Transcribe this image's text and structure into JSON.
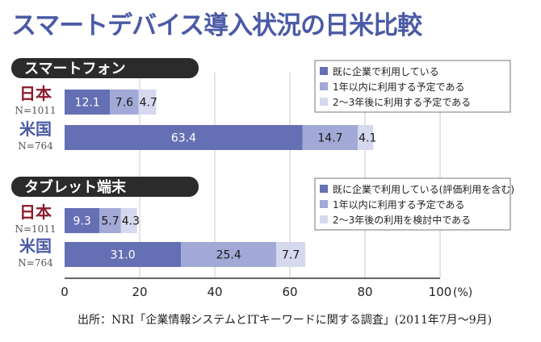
{
  "title": "スマートデバイス導入状況の日米比較",
  "source": "出所：NRI「企業情報システムとITキーワードに関する調査」(2011年7月〜9月)",
  "colors": {
    "title": "#4b5aa6",
    "section_header_bg": "#2b2b2b",
    "series1": "#6570b4",
    "series2": "#a2a9d6",
    "series3": "#d6d8ee",
    "japan_label": "#8b1a2b",
    "us_label": "#4b5aa6",
    "grid": "#c8c8c8"
  },
  "chart_data": [
    {
      "type": "bar",
      "orientation": "horizontal",
      "stacked": true,
      "title": "スマートフォン",
      "categories": [
        {
          "label": "日本",
          "sublabel": "N=1011"
        },
        {
          "label": "米国",
          "sublabel": "N=764"
        }
      ],
      "series": [
        {
          "name": "既に企業で利用している",
          "values": [
            12.1,
            63.4
          ]
        },
        {
          "name": "1年以内に利用する予定である",
          "values": [
            7.6,
            14.7
          ]
        },
        {
          "name": "2〜3年後に利用する予定である",
          "values": [
            4.7,
            4.1
          ]
        }
      ],
      "legend_position": "top-right"
    },
    {
      "type": "bar",
      "orientation": "horizontal",
      "stacked": true,
      "title": "タブレット端末",
      "categories": [
        {
          "label": "日本",
          "sublabel": "N=1011"
        },
        {
          "label": "米国",
          "sublabel": "N=764"
        }
      ],
      "series": [
        {
          "name": "既に企業で利用している(評価利用を含む)",
          "values": [
            9.3,
            31.0
          ]
        },
        {
          "name": "1年以内に利用する予定である",
          "values": [
            5.7,
            25.4
          ]
        },
        {
          "name": "2〜3年後の利用を検討中である",
          "values": [
            4.3,
            7.7
          ]
        }
      ],
      "legend_position": "top-right"
    }
  ],
  "x_axis": {
    "min": 0,
    "max": 100,
    "ticks": [
      0,
      20,
      40,
      60,
      80,
      100
    ],
    "unit": "(%)",
    "grid": true
  }
}
